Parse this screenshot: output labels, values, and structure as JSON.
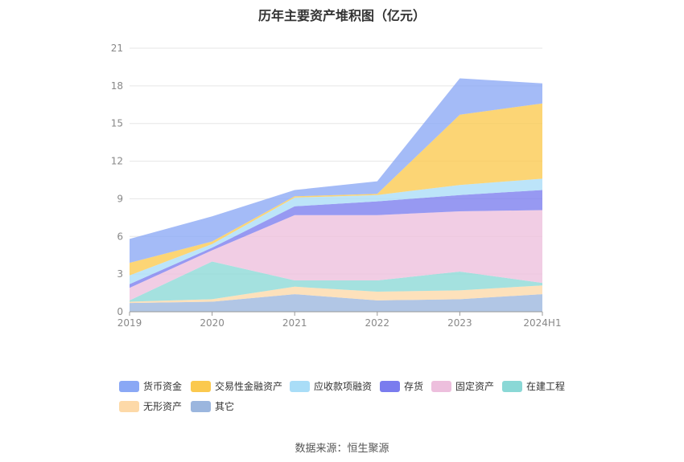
{
  "chart_data": {
    "type": "area",
    "title": "历年主要资产堆积图（亿元）",
    "categories": [
      "2019",
      "2020",
      "2021",
      "2022",
      "2023",
      "2024H1"
    ],
    "ylim": [
      0,
      21
    ],
    "yticks": [
      "0",
      "3",
      "6",
      "9",
      "12",
      "15",
      "18",
      "21"
    ],
    "grid": true,
    "legend_position": "bottom",
    "stacking_order": [
      "其它",
      "无形资产",
      "在建工程",
      "固定资产",
      "存货",
      "应收款项融资",
      "交易性金融资产",
      "货币资金"
    ],
    "series": [
      {
        "name": "货币资金",
        "color": "#8aa8f5",
        "values": [
          1.9,
          2.0,
          0.5,
          1.0,
          2.9,
          1.6
        ]
      },
      {
        "name": "交易性金融资产",
        "color": "#fbc94e",
        "values": [
          1.0,
          0.2,
          0.1,
          0.1,
          5.6,
          6.0
        ]
      },
      {
        "name": "应收款项融资",
        "color": "#a9ddf7",
        "values": [
          0.7,
          0.3,
          0.7,
          0.5,
          0.8,
          0.9
        ]
      },
      {
        "name": "存货",
        "color": "#7a7cee",
        "values": [
          0.3,
          0.2,
          0.7,
          1.1,
          1.3,
          1.6
        ]
      },
      {
        "name": "固定资产",
        "color": "#edbfdd",
        "values": [
          1.0,
          0.9,
          5.2,
          5.2,
          4.8,
          5.8
        ]
      },
      {
        "name": "在建工程",
        "color": "#8ad8d6",
        "values": [
          0.1,
          3.0,
          0.5,
          0.9,
          1.5,
          0.2
        ]
      },
      {
        "name": "无形资产",
        "color": "#fdd9a8",
        "values": [
          0.1,
          0.2,
          0.6,
          0.7,
          0.7,
          0.7
        ]
      },
      {
        "name": "其它",
        "color": "#9bb6de",
        "values": [
          0.7,
          0.8,
          1.4,
          0.9,
          1.0,
          1.4
        ]
      }
    ]
  },
  "legend": {
    "items": [
      "货币资金",
      "交易性金融资产",
      "应收款项融资",
      "存货",
      "固定资产",
      "在建工程",
      "无形资产",
      "其它"
    ]
  },
  "source": "数据来源：恒生聚源"
}
